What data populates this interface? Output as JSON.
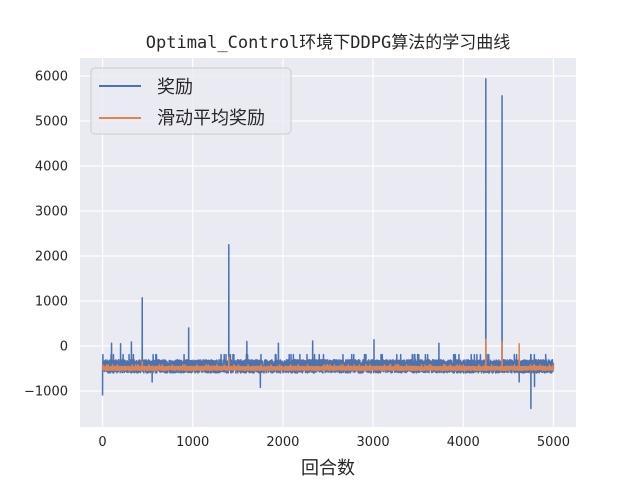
{
  "chart_data": {
    "type": "line",
    "title": "Optimal_Control环境下DDPG算法的学习曲线",
    "xlabel": "回合数",
    "ylabel": "",
    "xlim": [
      -250,
      5250
    ],
    "ylim": [
      -1800,
      6400
    ],
    "xticks": [
      0,
      1000,
      2000,
      3000,
      4000,
      5000
    ],
    "yticks": [
      -1000,
      0,
      1000,
      2000,
      3000,
      4000,
      5000,
      6000
    ],
    "grid": true,
    "legend_position": "top-left",
    "series": [
      {
        "name": "奖励",
        "color": "#4c72b0",
        "baseline": -480,
        "noise_low": -120,
        "noise_high": 180,
        "spikes": [
          {
            "x": 0,
            "y": -1100
          },
          {
            "x": 100,
            "y": 60
          },
          {
            "x": 200,
            "y": 50
          },
          {
            "x": 320,
            "y": 90
          },
          {
            "x": 440,
            "y": 1070
          },
          {
            "x": 550,
            "y": -800
          },
          {
            "x": 955,
            "y": 400
          },
          {
            "x": 1400,
            "y": 2250
          },
          {
            "x": 1600,
            "y": 100
          },
          {
            "x": 1750,
            "y": -920
          },
          {
            "x": 1950,
            "y": 60
          },
          {
            "x": 2330,
            "y": 110
          },
          {
            "x": 3010,
            "y": 140
          },
          {
            "x": 3730,
            "y": 60
          },
          {
            "x": 4250,
            "y": 5940
          },
          {
            "x": 4430,
            "y": 5560
          },
          {
            "x": 4620,
            "y": -800
          },
          {
            "x": 4750,
            "y": -1390
          },
          {
            "x": 4790,
            "y": -900
          }
        ]
      },
      {
        "name": "滑动平均奖励",
        "color": "#dd8452",
        "baseline": -500,
        "noise_low": -40,
        "noise_high": 50,
        "spikes": [
          {
            "x": 440,
            "y": -350
          },
          {
            "x": 1400,
            "y": -250
          },
          {
            "x": 4250,
            "y": 150
          },
          {
            "x": 4430,
            "y": 100
          },
          {
            "x": 4620,
            "y": 50
          }
        ]
      }
    ],
    "x_range_data": [
      0,
      5000
    ],
    "n_points": 5001
  }
}
